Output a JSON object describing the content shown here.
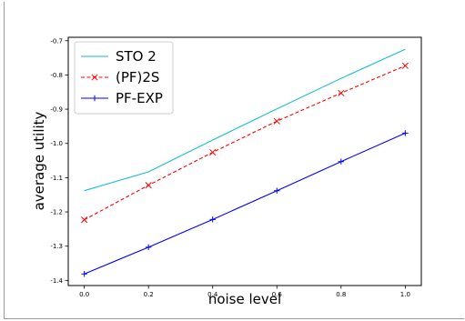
{
  "chart_data": {
    "type": "line",
    "xlabel": "noise level",
    "ylabel": "average utility",
    "xlim": [
      -0.05,
      1.05
    ],
    "ylim": [
      -1.415,
      -0.69
    ],
    "x_ticks": [
      "0.0",
      "0.2",
      "0.4",
      "0.6",
      "0.8",
      "1.0"
    ],
    "y_ticks": [
      "-0.7",
      "-0.8",
      "-0.9",
      "-1.0",
      "-1.1",
      "-1.2",
      "-1.3",
      "-1.4"
    ],
    "grid": false,
    "legend_position": "top-left",
    "series": [
      {
        "name": "STO 2",
        "color": "#17becf",
        "style": "solid",
        "marker": "none",
        "x": [
          0.0,
          0.2,
          0.4,
          0.6,
          0.8,
          1.0
        ],
        "y": [
          -1.138,
          -1.083,
          -0.99,
          -0.899,
          -0.81,
          -0.725
        ]
      },
      {
        "name": "(PF)2S",
        "color": "#ff0000",
        "style": "dashed",
        "marker": "x",
        "x": [
          0.0,
          0.2,
          0.4,
          0.6,
          0.8,
          1.0
        ],
        "y": [
          -1.223,
          -1.122,
          -1.026,
          -0.935,
          -0.853,
          -0.773
        ]
      },
      {
        "name": "PF-EXP",
        "color": "#0000ff",
        "style": "solid",
        "marker": "+",
        "x": [
          0.0,
          0.2,
          0.4,
          0.6,
          0.8,
          1.0
        ],
        "y": [
          -1.381,
          -1.303,
          -1.222,
          -1.138,
          -1.053,
          -0.97
        ]
      }
    ]
  }
}
